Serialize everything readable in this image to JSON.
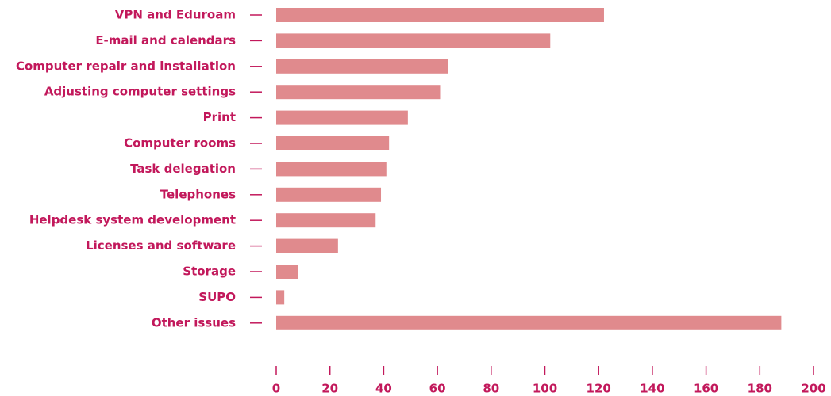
{
  "chart_data": {
    "type": "bar",
    "orientation": "horizontal",
    "categories": [
      "VPN and Eduroam",
      "E-mail and calendars",
      "Computer repair and installation",
      "Adjusting computer settings",
      "Print",
      "Computer rooms",
      "Task delegation",
      "Telephones",
      "Helpdesk system development",
      "Licenses and software",
      "Storage",
      "SUPO",
      "Other issues"
    ],
    "values": [
      122,
      102,
      64,
      61,
      49,
      42,
      41,
      39,
      37,
      23,
      8,
      3,
      188
    ],
    "color": "#e08a8d",
    "xlim": [
      0,
      200
    ],
    "xticks": [
      0,
      20,
      40,
      60,
      80,
      100,
      120,
      140,
      160,
      180,
      200
    ]
  }
}
